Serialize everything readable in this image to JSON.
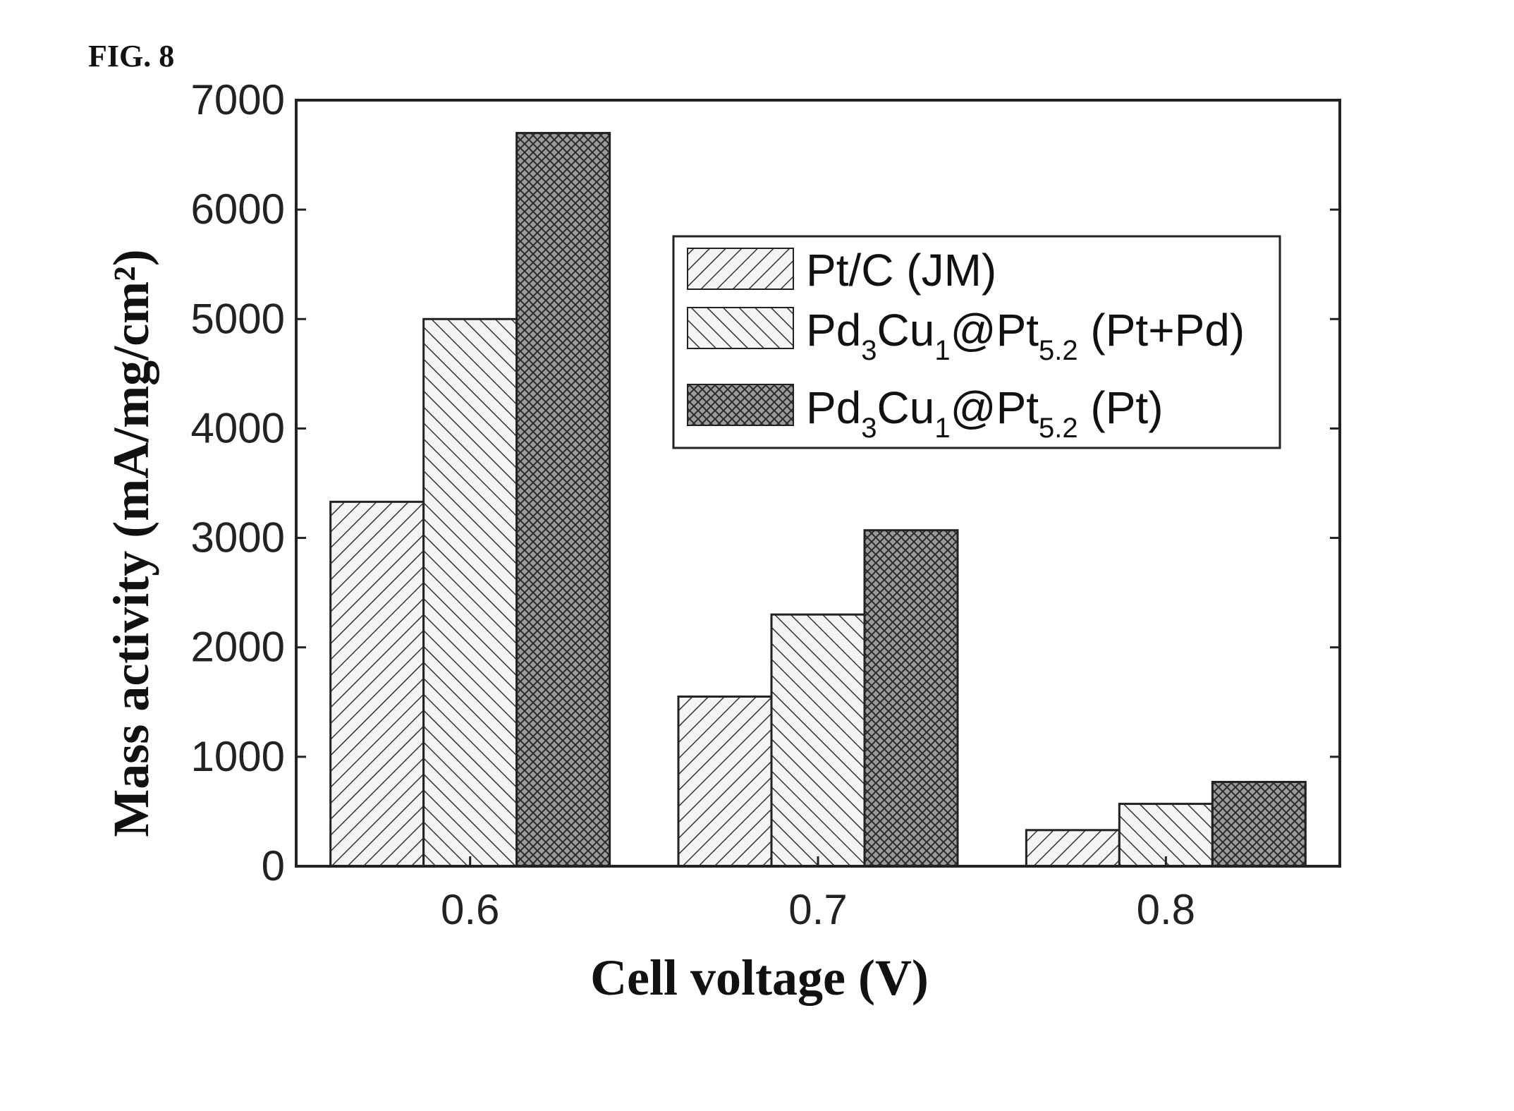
{
  "figure_label": "FIG. 8",
  "chart_data": {
    "type": "bar",
    "categories": [
      "0.6",
      "0.7",
      "0.8"
    ],
    "series": [
      {
        "name": "Pt/C (JM)",
        "values": [
          3330,
          1550,
          330
        ],
        "pattern": "hatch-up"
      },
      {
        "name": "Pd3Cu1@Pt5.2 (Pt+Pd)",
        "values": [
          5000,
          2300,
          570
        ],
        "pattern": "hatch-down"
      },
      {
        "name": "Pd3Cu1@Pt5.2 (Pt)",
        "values": [
          6700,
          3070,
          770
        ],
        "pattern": "crosshatch"
      }
    ],
    "xlabel": "Cell voltage (V)",
    "ylabel": "Mass activity (mA/mg/cm²)",
    "ylim": [
      0,
      7000
    ],
    "yticks": [
      "0",
      "1000",
      "2000",
      "3000",
      "4000",
      "5000",
      "6000",
      "7000"
    ],
    "grid": false,
    "legend_position": "top-right"
  },
  "legend": {
    "s1": {
      "main": "Pt/C (JM)"
    },
    "s2": {
      "a": "Pd",
      "a_sub": "3",
      "b": "Cu",
      "b_sub": "1",
      "c": "@Pt",
      "c_sub": "5.2",
      "d": " (Pt+Pd)"
    },
    "s3": {
      "a": "Pd",
      "a_sub": "3",
      "b": "Cu",
      "b_sub": "1",
      "c": "@Pt",
      "c_sub": "5.2",
      "d": " (Pt)"
    }
  }
}
